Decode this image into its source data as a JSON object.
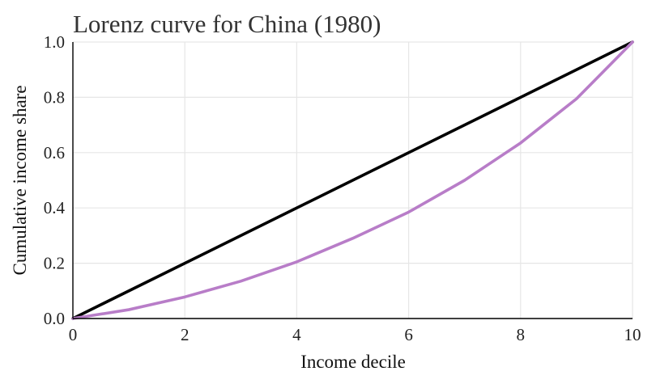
{
  "chart_data": {
    "type": "line",
    "title": "Lorenz curve for China (1980)",
    "xlabel": "Income decile",
    "ylabel": "Cumulative income share",
    "xlim": [
      0,
      10
    ],
    "ylim": [
      0,
      1
    ],
    "x_ticks": [
      "0",
      "2",
      "4",
      "6",
      "8",
      "10"
    ],
    "y_ticks": [
      "0.0",
      "0.2",
      "0.4",
      "0.6",
      "0.8",
      "1.0"
    ],
    "grid": true,
    "series": [
      {
        "color": "#000000",
        "x": [
          0,
          10
        ],
        "y": [
          0,
          1
        ]
      },
      {
        "color": "#b87dc8",
        "x": [
          0,
          1,
          2,
          3,
          4,
          5,
          6,
          7,
          8,
          9,
          10
        ],
        "y": [
          0,
          0.032,
          0.078,
          0.135,
          0.205,
          0.29,
          0.385,
          0.5,
          0.635,
          0.795,
          1.0
        ]
      }
    ]
  }
}
